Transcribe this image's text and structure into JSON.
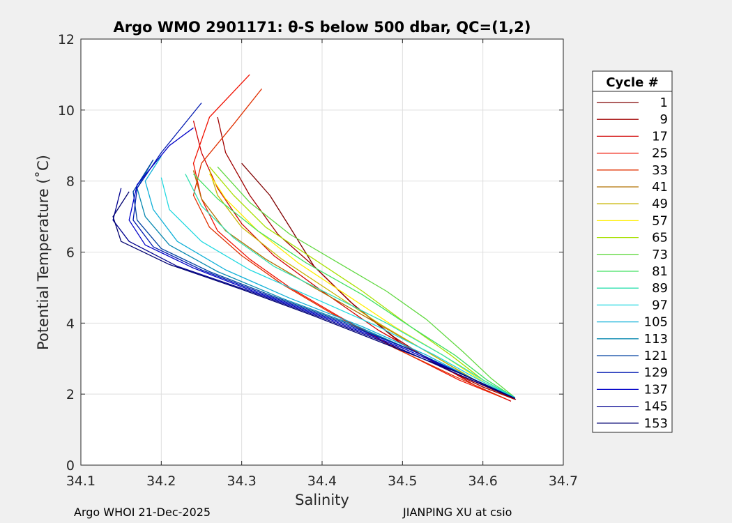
{
  "chart_data": {
    "type": "line",
    "title": "Argo WMO 2901171: θ-S below 500 dbar,  QC=(1,2)",
    "xlabel": "Salinity",
    "ylabel": "Potential Temperature (˚C)",
    "xlim": [
      34.1,
      34.7
    ],
    "ylim": [
      0,
      12
    ],
    "xticks": [
      34.1,
      34.2,
      34.3,
      34.4,
      34.5,
      34.6,
      34.7
    ],
    "xtick_labels": [
      "34.1",
      "34.2",
      "34.3",
      "34.4",
      "34.5",
      "34.6",
      "34.7"
    ],
    "yticks": [
      0,
      2,
      4,
      6,
      8,
      10,
      12
    ],
    "ytick_labels": [
      "0",
      "2",
      "4",
      "6",
      "8",
      "10",
      "12"
    ],
    "grid": true,
    "legend": {
      "title": "Cycle #",
      "placement": "outside-right",
      "entries": [
        "1",
        "9",
        "17",
        "25",
        "33",
        "41",
        "49",
        "57",
        "65",
        "73",
        "81",
        "89",
        "97",
        "105",
        "113",
        "121",
        "129",
        "137",
        "145",
        "153"
      ],
      "colors": [
        "#7f0000",
        "#a00000",
        "#d00000",
        "#f01000",
        "#e03000",
        "#b07000",
        "#c8b400",
        "#ffee00",
        "#a8e000",
        "#60d840",
        "#40e060",
        "#30e0b0",
        "#20d8e0",
        "#10b0d8",
        "#0888b0",
        "#0040a0",
        "#0018b0",
        "#0000c8",
        "#000090",
        "#000070"
      ]
    },
    "series": [
      {
        "name": "1",
        "color": "#7f0000",
        "x": [
          34.641,
          34.61,
          34.56,
          34.5,
          34.44,
          34.39,
          34.36,
          34.335,
          34.3
        ],
        "y": [
          1.85,
          2.15,
          2.65,
          3.4,
          4.5,
          5.6,
          6.7,
          7.6,
          8.5
        ]
      },
      {
        "name": "9",
        "color": "#a00000",
        "x": [
          34.64,
          34.6,
          34.545,
          34.49,
          34.435,
          34.39,
          34.345,
          34.31,
          34.28,
          34.27
        ],
        "y": [
          1.85,
          2.2,
          2.8,
          3.6,
          4.6,
          5.6,
          6.5,
          7.6,
          8.8,
          9.8
        ]
      },
      {
        "name": "17",
        "color": "#d00000",
        "x": [
          34.635,
          34.59,
          34.54,
          34.47,
          34.4,
          34.34,
          34.3,
          34.27,
          34.25,
          34.24
        ],
        "y": [
          1.8,
          2.25,
          2.9,
          3.8,
          4.9,
          5.9,
          6.8,
          7.8,
          8.8,
          9.7
        ]
      },
      {
        "name": "25",
        "color": "#f01000",
        "x": [
          34.63,
          34.57,
          34.5,
          34.42,
          34.36,
          34.31,
          34.27,
          34.25,
          34.24,
          34.26,
          34.31
        ],
        "y": [
          1.85,
          2.4,
          3.2,
          4.2,
          5.0,
          5.8,
          6.6,
          7.5,
          8.5,
          9.8,
          11.0
        ]
      },
      {
        "name": "33",
        "color": "#e03000",
        "x": [
          34.625,
          34.565,
          34.49,
          34.41,
          34.35,
          34.3,
          34.26,
          34.24,
          34.25,
          34.29,
          34.325
        ],
        "y": [
          1.9,
          2.5,
          3.3,
          4.3,
          5.1,
          5.9,
          6.7,
          7.6,
          8.5,
          9.6,
          10.6
        ]
      },
      {
        "name": "41",
        "color": "#b07000",
        "x": [
          34.64,
          34.59,
          34.53,
          34.46,
          34.39,
          34.33,
          34.28,
          34.25,
          34.24
        ],
        "y": [
          1.9,
          2.4,
          3.2,
          4.1,
          5.0,
          5.8,
          6.6,
          7.5,
          8.3
        ]
      },
      {
        "name": "49",
        "color": "#c8b400",
        "x": [
          34.64,
          34.59,
          34.53,
          34.47,
          34.41,
          34.35,
          34.3,
          34.27,
          34.26
        ],
        "y": [
          1.88,
          2.4,
          3.2,
          4.0,
          4.9,
          5.8,
          6.7,
          7.6,
          8.3
        ]
      },
      {
        "name": "57",
        "color": "#ffee00",
        "x": [
          34.64,
          34.6,
          34.55,
          34.49,
          34.43,
          34.37,
          34.32,
          34.28,
          34.26
        ],
        "y": [
          1.88,
          2.35,
          3.1,
          3.9,
          4.8,
          5.7,
          6.6,
          7.5,
          8.2
        ]
      },
      {
        "name": "65",
        "color": "#a8e000",
        "x": [
          34.64,
          34.6,
          34.56,
          34.51,
          34.45,
          34.39,
          34.33,
          34.29,
          34.26
        ],
        "y": [
          1.9,
          2.4,
          3.1,
          3.9,
          4.9,
          5.8,
          6.7,
          7.6,
          8.4
        ]
      },
      {
        "name": "73",
        "color": "#60d840",
        "x": [
          34.64,
          34.61,
          34.575,
          34.53,
          34.48,
          34.42,
          34.36,
          34.31,
          34.27
        ],
        "y": [
          1.9,
          2.45,
          3.2,
          4.1,
          4.9,
          5.7,
          6.5,
          7.4,
          8.4
        ]
      },
      {
        "name": "81",
        "color": "#40e060",
        "x": [
          34.64,
          34.605,
          34.565,
          34.51,
          34.45,
          34.38,
          34.32,
          34.27,
          34.24
        ],
        "y": [
          1.9,
          2.4,
          3.1,
          3.9,
          4.8,
          5.7,
          6.6,
          7.5,
          8.2
        ]
      },
      {
        "name": "89",
        "color": "#30e0b0",
        "x": [
          34.64,
          34.6,
          34.55,
          34.48,
          34.41,
          34.34,
          34.29,
          34.25,
          34.23
        ],
        "y": [
          1.9,
          2.4,
          3.1,
          4.0,
          4.8,
          5.6,
          6.4,
          7.3,
          8.2
        ]
      },
      {
        "name": "97",
        "color": "#20d8e0",
        "x": [
          34.64,
          34.595,
          34.54,
          34.47,
          34.39,
          34.31,
          34.25,
          34.21,
          34.2
        ],
        "y": [
          1.9,
          2.4,
          3.1,
          3.9,
          4.7,
          5.5,
          6.3,
          7.2,
          8.1
        ]
      },
      {
        "name": "105",
        "color": "#10b0d8",
        "x": [
          34.64,
          34.59,
          34.53,
          34.45,
          34.36,
          34.28,
          34.22,
          34.19,
          34.18,
          34.2
        ],
        "y": [
          1.9,
          2.4,
          3.1,
          3.9,
          4.7,
          5.5,
          6.3,
          7.2,
          8.0,
          8.7
        ]
      },
      {
        "name": "113",
        "color": "#0888b0",
        "x": [
          34.64,
          34.59,
          34.52,
          34.44,
          34.35,
          34.27,
          34.21,
          34.18,
          34.17,
          34.19
        ],
        "y": [
          1.88,
          2.4,
          3.15,
          3.95,
          4.7,
          5.45,
          6.2,
          7.0,
          7.8,
          8.6
        ]
      },
      {
        "name": "121",
        "color": "#0040a0",
        "x": [
          34.64,
          34.585,
          34.515,
          34.43,
          34.34,
          34.26,
          34.2,
          34.17,
          34.165,
          34.19
        ],
        "y": [
          1.88,
          2.45,
          3.2,
          4.0,
          4.75,
          5.45,
          6.1,
          6.9,
          7.7,
          8.6
        ]
      },
      {
        "name": "129",
        "color": "#0018b0",
        "x": [
          34.64,
          34.58,
          34.51,
          34.42,
          34.33,
          34.25,
          34.19,
          34.165,
          34.17,
          34.2,
          34.25
        ],
        "y": [
          1.88,
          2.5,
          3.25,
          4.05,
          4.8,
          5.5,
          6.15,
          6.9,
          7.8,
          8.8,
          10.2
        ]
      },
      {
        "name": "137",
        "color": "#0000c8",
        "x": [
          34.64,
          34.58,
          34.5,
          34.41,
          34.32,
          34.24,
          34.18,
          34.16,
          34.17,
          34.21,
          34.24
        ],
        "y": [
          1.88,
          2.5,
          3.3,
          4.1,
          4.85,
          5.55,
          6.2,
          6.9,
          7.9,
          9.0,
          9.5
        ]
      },
      {
        "name": "145",
        "color": "#000090",
        "x": [
          34.64,
          34.57,
          34.49,
          34.4,
          34.31,
          34.22,
          34.16,
          34.14,
          34.15
        ],
        "y": [
          1.88,
          2.55,
          3.35,
          4.15,
          4.9,
          5.6,
          6.3,
          6.9,
          7.8
        ]
      },
      {
        "name": "153",
        "color": "#000070",
        "x": [
          34.64,
          34.57,
          34.48,
          34.39,
          34.3,
          34.21,
          34.15,
          34.14,
          34.16
        ],
        "y": [
          1.88,
          2.6,
          3.4,
          4.2,
          4.95,
          5.65,
          6.3,
          7.0,
          7.7
        ]
      }
    ]
  },
  "footer": {
    "left": "Argo WHOI 21-Dec-2025",
    "right": "JIANPING XU at csio"
  }
}
